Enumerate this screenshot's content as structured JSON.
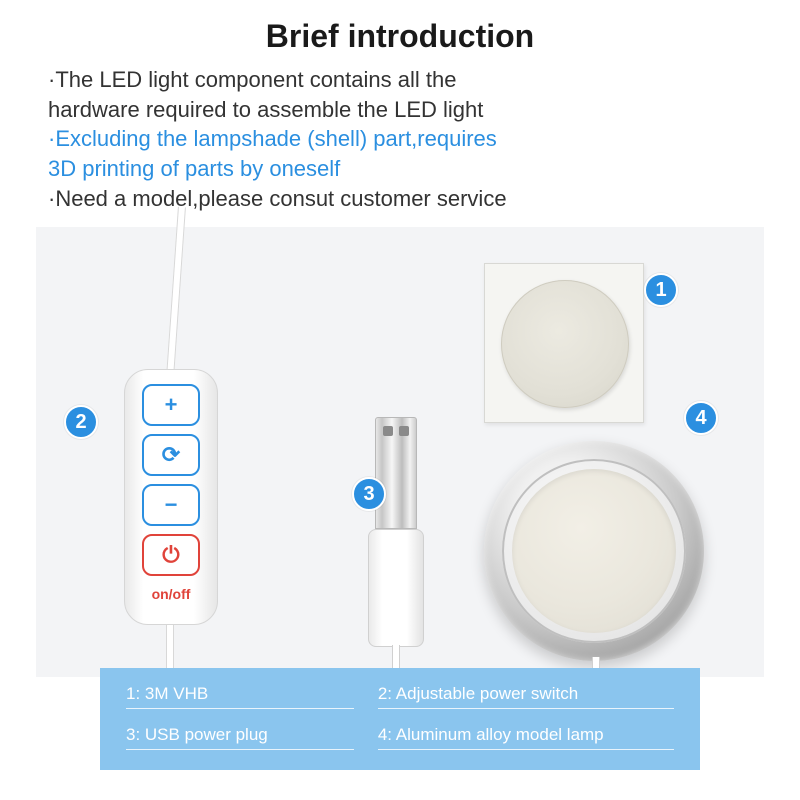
{
  "title": "Brief introduction",
  "intro": {
    "line1a": "·The LED light component contains all the",
    "line1b": " hardware required to assemble the LED light",
    "line2a": "·Excluding the lampshade (shell) part,requires",
    "line2b": " 3D printing of parts by oneself",
    "line3": "·Need a model,please consut customer service"
  },
  "badges": {
    "b1": "1",
    "b2": "2",
    "b3": "3",
    "b4": "4"
  },
  "switch": {
    "plus": "+",
    "cycle": "⟳",
    "minus": "−",
    "power": "⏻",
    "onoff": "on/off"
  },
  "legend": {
    "l1": "1: 3M VHB",
    "l2": "2: Adjustable power switch",
    "l3": "3: USB power plug",
    "l4": "4: Aluminum alloy model lamp"
  },
  "colors": {
    "accent": "#2b8fe0",
    "legend_bg": "#8ac5ee",
    "red": "#e0433a",
    "panel_bg": "#f3f4f6"
  }
}
